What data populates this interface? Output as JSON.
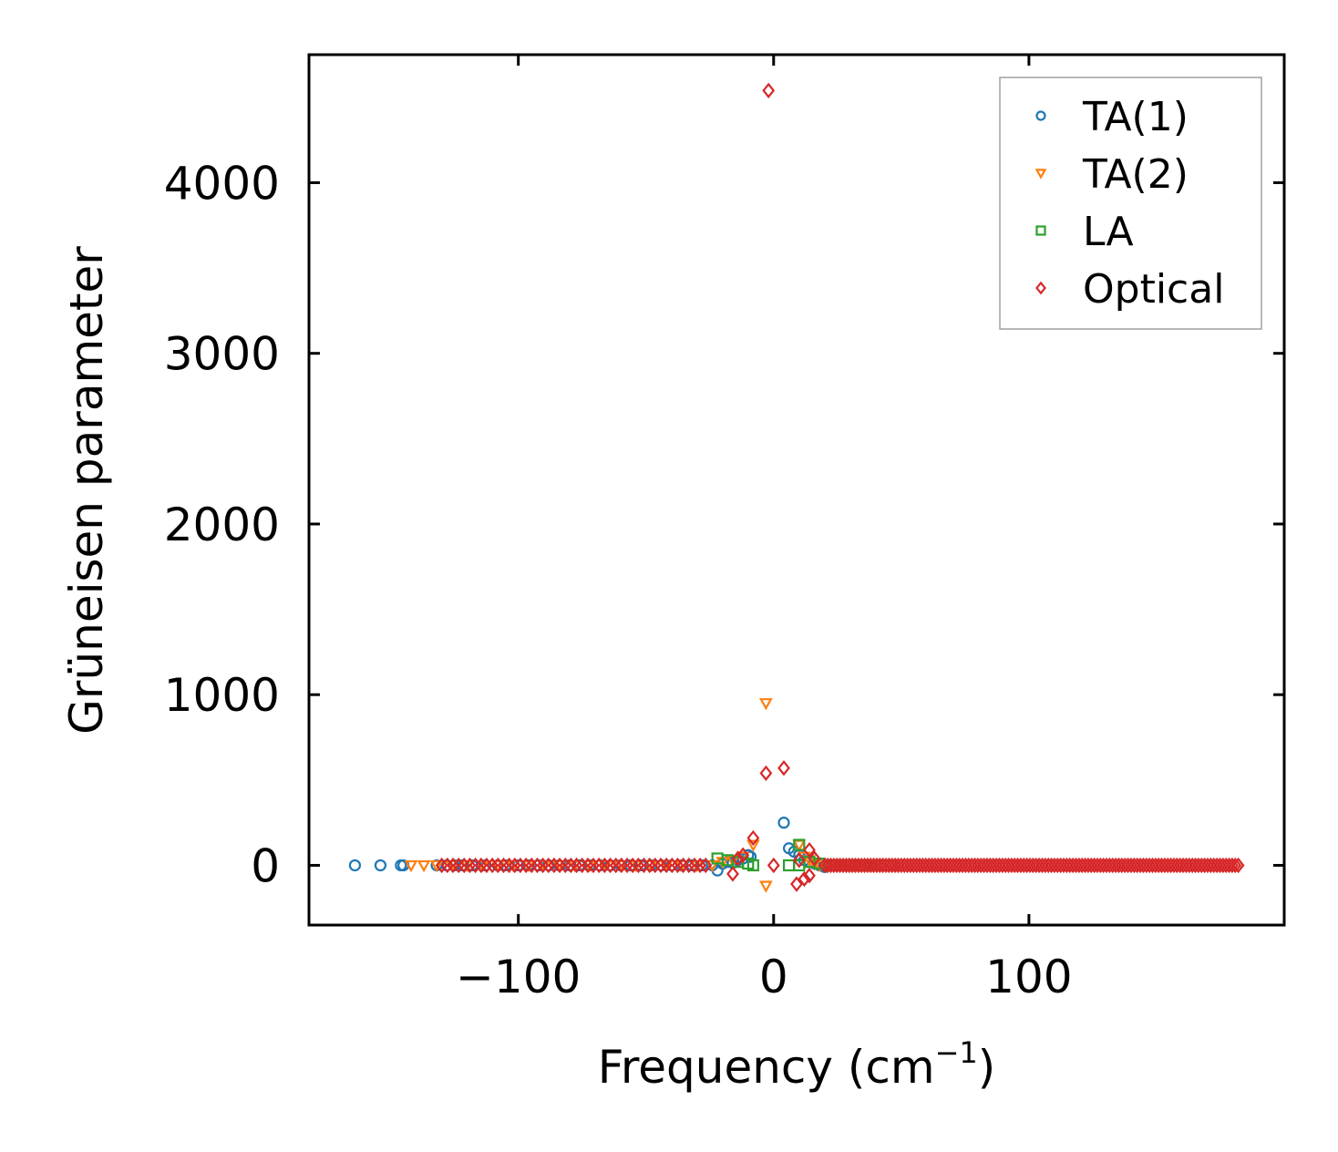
{
  "chart_data": {
    "type": "scatter",
    "title": "",
    "xlabel": "Frequency (cm",
    "xlabel_sup": "−1",
    "xlabel_end": ")",
    "ylabel": "Grüneisen parameter",
    "xlim": [
      -182,
      200
    ],
    "ylim": [
      -350,
      4750
    ],
    "x_ticks": [
      -100,
      0,
      100
    ],
    "x_tick_labels": [
      "−100",
      "0",
      "100"
    ],
    "y_ticks": [
      0,
      1000,
      2000,
      3000,
      4000
    ],
    "y_tick_labels": [
      "0",
      "1000",
      "2000",
      "3000",
      "4000"
    ],
    "grid": false,
    "legend_position": "top-right",
    "series": [
      {
        "name": "TA(1)",
        "marker": "circle",
        "color": "#1f77b4",
        "points": [
          [
            -164,
            0
          ],
          [
            -154,
            0
          ],
          [
            -146,
            0
          ],
          [
            -145,
            0
          ],
          [
            -132,
            0
          ],
          [
            -128,
            0
          ],
          [
            -125,
            0
          ],
          [
            -122,
            0
          ],
          [
            -118,
            0
          ],
          [
            -113,
            0
          ],
          [
            -108,
            0
          ],
          [
            -105,
            0
          ],
          [
            -100,
            0
          ],
          [
            -96,
            0
          ],
          [
            -92,
            0
          ],
          [
            -88,
            0
          ],
          [
            -84,
            0
          ],
          [
            -80,
            0
          ],
          [
            -76,
            0
          ],
          [
            -72,
            0
          ],
          [
            -68,
            0
          ],
          [
            -64,
            0
          ],
          [
            -60,
            0
          ],
          [
            -56,
            0
          ],
          [
            -52,
            0
          ],
          [
            -48,
            0
          ],
          [
            -44,
            0
          ],
          [
            -40,
            0
          ],
          [
            -36,
            0
          ],
          [
            -32,
            0
          ],
          [
            -28,
            0
          ],
          [
            -24,
            0
          ],
          [
            -22,
            -30
          ],
          [
            -20,
            10
          ],
          [
            -18,
            20
          ],
          [
            -16,
            15
          ],
          [
            -14,
            30
          ],
          [
            -12,
            40
          ],
          [
            -10,
            60
          ],
          [
            -9,
            50
          ],
          [
            4,
            250
          ],
          [
            6,
            100
          ],
          [
            8,
            80
          ],
          [
            10,
            60
          ],
          [
            12,
            30
          ],
          [
            14,
            20
          ],
          [
            16,
            10
          ],
          [
            18,
            0
          ],
          [
            20,
            -10
          ],
          [
            22,
            0
          ],
          [
            24,
            0
          ],
          [
            26,
            0
          ],
          [
            28,
            0
          ],
          [
            30,
            0
          ],
          [
            32,
            0
          ],
          [
            34,
            0
          ],
          [
            36,
            0
          ],
          [
            40,
            0
          ]
        ]
      },
      {
        "name": "TA(2)",
        "marker": "triangle-down",
        "color": "#ff7f0e",
        "points": [
          [
            -142,
            0
          ],
          [
            -137,
            0
          ],
          [
            -132,
            0
          ],
          [
            -126,
            0
          ],
          [
            -120,
            0
          ],
          [
            -114,
            0
          ],
          [
            -108,
            0
          ],
          [
            -102,
            0
          ],
          [
            -96,
            0
          ],
          [
            -90,
            0
          ],
          [
            -84,
            0
          ],
          [
            -78,
            0
          ],
          [
            -72,
            0
          ],
          [
            -66,
            0
          ],
          [
            -60,
            0
          ],
          [
            -54,
            0
          ],
          [
            -48,
            0
          ],
          [
            -42,
            0
          ],
          [
            -36,
            0
          ],
          [
            -30,
            0
          ],
          [
            -24,
            0
          ],
          [
            -20,
            20
          ],
          [
            -16,
            30
          ],
          [
            -12,
            50
          ],
          [
            -8,
            120
          ],
          [
            -3,
            950
          ],
          [
            -3,
            -120
          ],
          [
            10,
            120
          ],
          [
            12,
            50
          ],
          [
            14,
            30
          ],
          [
            16,
            10
          ],
          [
            18,
            0
          ],
          [
            22,
            0
          ],
          [
            26,
            0
          ],
          [
            30,
            0
          ],
          [
            34,
            0
          ]
        ]
      },
      {
        "name": "LA",
        "marker": "square",
        "color": "#2ca02c",
        "points": [
          [
            -22,
            40
          ],
          [
            -18,
            30
          ],
          [
            -14,
            20
          ],
          [
            -10,
            10
          ],
          [
            -8,
            0
          ],
          [
            6,
            0
          ],
          [
            10,
            0
          ],
          [
            10,
            120
          ],
          [
            14,
            20
          ],
          [
            18,
            10
          ],
          [
            22,
            0
          ],
          [
            26,
            0
          ],
          [
            30,
            0
          ],
          [
            34,
            0
          ],
          [
            38,
            0
          ],
          [
            42,
            0
          ],
          [
            46,
            0
          ]
        ]
      },
      {
        "name": "Optical",
        "marker": "diamond",
        "color": "#d62728",
        "points": [
          [
            -2,
            4540
          ],
          [
            -3,
            540
          ],
          [
            4,
            570
          ],
          [
            -8,
            160
          ],
          [
            -12,
            60
          ],
          [
            -14,
            40
          ],
          [
            -16,
            -50
          ],
          [
            0,
            0
          ],
          [
            9,
            -110
          ],
          [
            12,
            -80
          ],
          [
            14,
            -60
          ],
          [
            14,
            90
          ],
          [
            16,
            40
          ],
          [
            10,
            30
          ]
        ],
        "dense_ranges": [
          {
            "x_from": -130,
            "x_to": -25,
            "step": 2.2,
            "y": 0
          },
          {
            "x_from": 20,
            "x_to": 182,
            "step": 1.2,
            "y": 0
          }
        ]
      }
    ]
  }
}
